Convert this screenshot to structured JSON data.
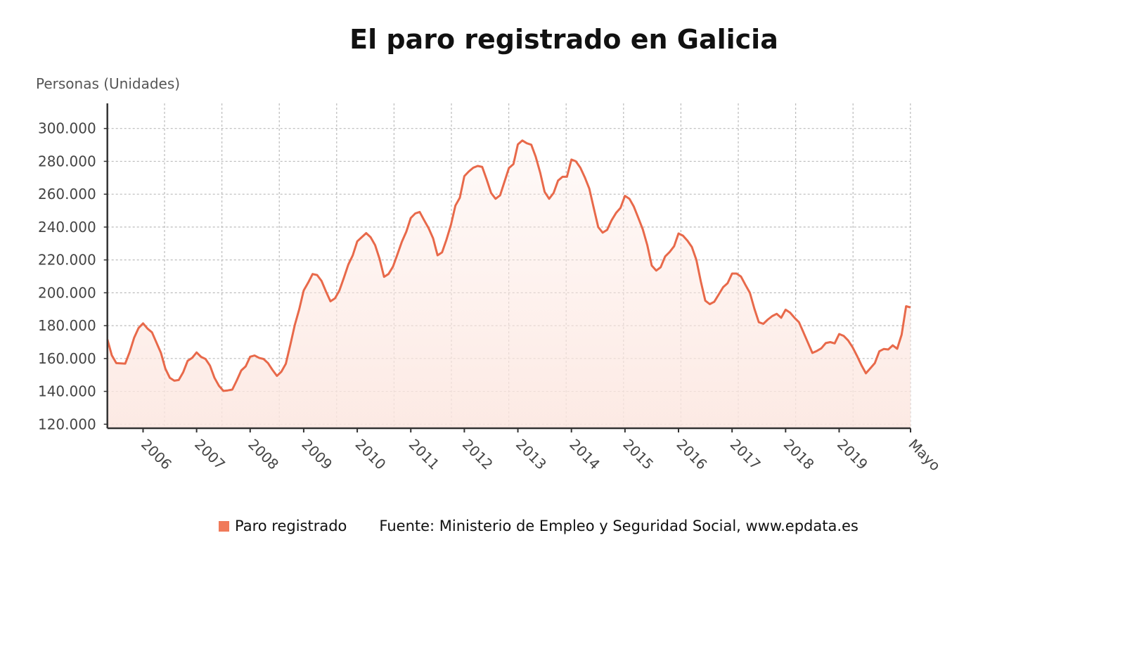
{
  "chart_data": {
    "type": "area",
    "title": "El paro registrado en Galicia",
    "ylabel": "Personas (Unidades)",
    "xlabel": "",
    "ylim": [
      120000,
      300000
    ],
    "yticks": [
      120000,
      140000,
      160000,
      180000,
      200000,
      220000,
      240000,
      260000,
      280000,
      300000
    ],
    "ytick_labels": [
      "120.000",
      "140.000",
      "160.000",
      "180.000",
      "200.000",
      "220.000",
      "240.000",
      "260.000",
      "280.000",
      "300.000"
    ],
    "x_start": "2005-05",
    "x_end": "2020-05",
    "frequency": "monthly",
    "xtick_labels": [
      "2006",
      "2007",
      "2008",
      "2009",
      "2010",
      "2011",
      "2012",
      "2013",
      "2014",
      "2015",
      "2016",
      "2017",
      "2018",
      "2019",
      "Mayo"
    ],
    "grid": true,
    "series": [
      {
        "name": "Paro registrado",
        "color": "#e8694a",
        "values": [
          171700,
          162000,
          157200,
          157000,
          156900,
          163900,
          172700,
          178600,
          181400,
          178200,
          175900,
          169700,
          163400,
          153800,
          148300,
          146500,
          146900,
          151700,
          158600,
          160400,
          163700,
          161000,
          159700,
          155600,
          148300,
          143400,
          140300,
          140600,
          141100,
          146600,
          152700,
          155200,
          161100,
          161800,
          160400,
          159700,
          157200,
          153100,
          149400,
          152000,
          156800,
          168300,
          180300,
          190000,
          201400,
          206200,
          211400,
          210800,
          207200,
          200700,
          194800,
          196600,
          201400,
          209000,
          217200,
          222800,
          231300,
          233800,
          236300,
          233800,
          229000,
          220700,
          209700,
          211400,
          215900,
          223400,
          231000,
          237200,
          245500,
          248300,
          249200,
          244100,
          239300,
          233100,
          222800,
          224600,
          232400,
          241400,
          253100,
          257900,
          271000,
          273800,
          276100,
          277200,
          276600,
          269000,
          260700,
          257200,
          259300,
          267600,
          275900,
          278300,
          290300,
          292700,
          291000,
          290100,
          282800,
          273100,
          261400,
          257200,
          260700,
          268300,
          270600,
          270600,
          281100,
          280000,
          276100,
          270300,
          263400,
          251700,
          240000,
          236600,
          238300,
          244100,
          248600,
          251700,
          259000,
          257200,
          252400,
          245500,
          238600,
          229000,
          216600,
          213500,
          215500,
          222100,
          224800,
          228300,
          236100,
          234800,
          231700,
          227900,
          220000,
          206900,
          195200,
          193100,
          194500,
          198900,
          203400,
          205800,
          211700,
          211700,
          209900,
          204800,
          200000,
          190300,
          182100,
          181100,
          183700,
          185800,
          187200,
          184800,
          189700,
          187900,
          184800,
          182100,
          175900,
          169700,
          163400,
          164600,
          166200,
          169400,
          170000,
          169200,
          174900,
          173800,
          171000,
          166900,
          161700,
          155900,
          151000,
          154100,
          157200,
          164400,
          165800,
          165500,
          168000,
          165900,
          174500,
          191800,
          191100
        ]
      }
    ],
    "legend": "bottom",
    "source": "Fuente: Ministerio de Empleo y Seguridad Social, www.epdata.es"
  },
  "legend_swatch_color": "#f07a5a"
}
